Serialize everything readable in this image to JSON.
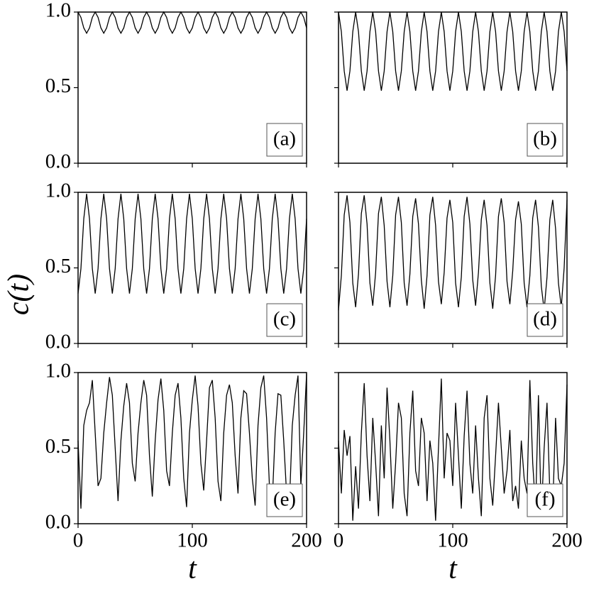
{
  "chart_data": [
    {
      "type": "line",
      "annotation": "(a)",
      "color": "#000000",
      "xlim": [
        0,
        200
      ],
      "ylim": [
        0,
        1
      ],
      "xticks": [
        0,
        100,
        200
      ],
      "yticks": [
        {
          "value": 0,
          "label": "0.0"
        },
        0.5,
        {
          "value": 1,
          "label": "1.0"
        }
      ],
      "x": [
        0,
        2.5,
        5,
        7.5,
        10,
        12.5,
        15,
        17.5,
        20,
        22.5,
        25,
        27.5,
        30,
        32.5,
        35,
        37.5,
        40,
        42.5,
        45,
        47.5,
        50,
        52.5,
        55,
        57.5,
        60,
        62.5,
        65,
        67.5,
        70,
        72.5,
        75,
        77.5,
        80,
        82.5,
        85,
        87.5,
        90,
        92.5,
        95,
        97.5,
        100,
        102.5,
        105,
        107.5,
        110,
        112.5,
        115,
        117.5,
        120,
        122.5,
        125,
        127.5,
        130,
        132.5,
        135,
        137.5,
        140,
        142.5,
        145,
        147.5,
        150,
        152.5,
        155,
        157.5,
        160,
        162.5,
        165,
        167.5,
        170,
        172.5,
        175,
        177.5,
        180,
        182.5,
        185,
        187.5,
        190,
        192.5,
        195,
        197.5,
        200
      ],
      "values": [
        1,
        0.965,
        0.895,
        0.86,
        0.895,
        0.965,
        1,
        0.965,
        0.895,
        0.86,
        0.895,
        0.965,
        1,
        0.965,
        0.895,
        0.86,
        0.895,
        0.965,
        1,
        0.965,
        0.895,
        0.86,
        0.895,
        0.965,
        1,
        0.965,
        0.895,
        0.86,
        0.895,
        0.965,
        1,
        0.965,
        0.895,
        0.86,
        0.895,
        0.965,
        1,
        0.965,
        0.895,
        0.86,
        0.895,
        0.965,
        1,
        0.965,
        0.895,
        0.86,
        0.895,
        0.965,
        1,
        0.965,
        0.895,
        0.86,
        0.895,
        0.965,
        1,
        0.965,
        0.895,
        0.86,
        0.895,
        0.965,
        1,
        0.965,
        0.895,
        0.86,
        0.895,
        0.965,
        1,
        0.965,
        0.895,
        0.86,
        0.895,
        0.965,
        1,
        0.965,
        0.895,
        0.86,
        0.895,
        0.965,
        1,
        0.965,
        0.895
      ]
    },
    {
      "type": "line",
      "annotation": "(b)",
      "color": "#000000",
      "xlim": [
        0,
        200
      ],
      "ylim": [
        0,
        1
      ],
      "xticks": [
        0,
        100,
        200
      ],
      "yticks": [
        0,
        0.5,
        1
      ],
      "x": [
        0,
        2.5,
        5,
        7.5,
        10,
        12.5,
        15,
        17.5,
        20,
        22.5,
        25,
        27.5,
        30,
        32.5,
        35,
        37.5,
        40,
        42.5,
        45,
        47.5,
        50,
        52.5,
        55,
        57.5,
        60,
        62.5,
        65,
        67.5,
        70,
        72.5,
        75,
        77.5,
        80,
        82.5,
        85,
        87.5,
        90,
        92.5,
        95,
        97.5,
        100,
        102.5,
        105,
        107.5,
        110,
        112.5,
        115,
        117.5,
        120,
        122.5,
        125,
        127.5,
        130,
        132.5,
        135,
        137.5,
        140,
        142.5,
        145,
        147.5,
        150,
        152.5,
        155,
        157.5,
        160,
        162.5,
        165,
        167.5,
        170,
        172.5,
        175,
        177.5,
        180,
        182.5,
        185,
        187.5,
        190,
        192.5,
        195,
        197.5,
        200
      ],
      "values": [
        1,
        0.87,
        0.61,
        0.48,
        0.61,
        0.87,
        1,
        0.87,
        0.61,
        0.48,
        0.61,
        0.87,
        1,
        0.87,
        0.61,
        0.48,
        0.61,
        0.87,
        1,
        0.87,
        0.61,
        0.48,
        0.61,
        0.87,
        1,
        0.87,
        0.61,
        0.48,
        0.61,
        0.87,
        1,
        0.87,
        0.61,
        0.48,
        0.61,
        0.87,
        1,
        0.87,
        0.61,
        0.48,
        0.61,
        0.87,
        1,
        0.87,
        0.61,
        0.48,
        0.61,
        0.87,
        1,
        0.87,
        0.61,
        0.48,
        0.61,
        0.87,
        1,
        0.87,
        0.61,
        0.48,
        0.61,
        0.87,
        1,
        0.87,
        0.61,
        0.48,
        0.61,
        0.87,
        1,
        0.87,
        0.61,
        0.48,
        0.61,
        0.87,
        1,
        0.87,
        0.61,
        0.48,
        0.61,
        0.87,
        1,
        0.87,
        0.61
      ]
    },
    {
      "type": "line",
      "annotation": "(c)",
      "ylabel": "c(t)",
      "color": "#000000",
      "xlim": [
        0,
        200
      ],
      "ylim": [
        0,
        1
      ],
      "xticks": [
        0,
        100,
        200
      ],
      "yticks": [
        {
          "value": 0,
          "label": "0.0"
        },
        0.5,
        {
          "value": 1,
          "label": "1.0"
        }
      ],
      "x": [
        0,
        2.5,
        5,
        7.5,
        10,
        12.5,
        15,
        17.5,
        20,
        22.5,
        25,
        27.5,
        30,
        32.5,
        35,
        37.5,
        40,
        42.5,
        45,
        47.5,
        50,
        52.5,
        55,
        57.5,
        60,
        62.5,
        65,
        67.5,
        70,
        72.5,
        75,
        77.5,
        80,
        82.5,
        85,
        87.5,
        90,
        92.5,
        95,
        97.5,
        100,
        102.5,
        105,
        107.5,
        110,
        112.5,
        115,
        117.5,
        120,
        122.5,
        125,
        127.5,
        130,
        132.5,
        135,
        137.5,
        140,
        142.5,
        145,
        147.5,
        150,
        152.5,
        155,
        157.5,
        160,
        162.5,
        165,
        167.5,
        170,
        172.5,
        175,
        177.5,
        180,
        182.5,
        185,
        187.5,
        190,
        192.5,
        195,
        197.5,
        200
      ],
      "values": [
        0.33,
        0.495,
        0.825,
        0.99,
        0.825,
        0.495,
        0.33,
        0.495,
        0.825,
        0.99,
        0.825,
        0.495,
        0.33,
        0.495,
        0.825,
        0.99,
        0.825,
        0.495,
        0.33,
        0.495,
        0.825,
        0.99,
        0.825,
        0.495,
        0.33,
        0.495,
        0.825,
        0.99,
        0.825,
        0.495,
        0.33,
        0.495,
        0.825,
        0.99,
        0.825,
        0.495,
        0.33,
        0.495,
        0.825,
        0.99,
        0.825,
        0.495,
        0.33,
        0.495,
        0.825,
        0.99,
        0.825,
        0.495,
        0.33,
        0.495,
        0.825,
        0.99,
        0.825,
        0.495,
        0.33,
        0.495,
        0.825,
        0.99,
        0.825,
        0.495,
        0.33,
        0.495,
        0.825,
        0.99,
        0.825,
        0.495,
        0.33,
        0.495,
        0.825,
        0.99,
        0.825,
        0.495,
        0.33,
        0.495,
        0.825,
        0.99,
        0.825,
        0.495,
        0.33,
        0.495,
        0.825
      ]
    },
    {
      "type": "line",
      "annotation": "(d)",
      "color": "#000000",
      "xlim": [
        0,
        200
      ],
      "ylim": [
        0,
        1
      ],
      "xticks": [
        0,
        100,
        200
      ],
      "yticks": [
        0,
        0.5,
        1
      ],
      "x": [
        0,
        2.5,
        5,
        7.5,
        10,
        12.5,
        15,
        17.5,
        20,
        22.5,
        25,
        27.5,
        30,
        32.5,
        35,
        37.5,
        40,
        42.5,
        45,
        47.5,
        50,
        52.5,
        55,
        57.5,
        60,
        62.5,
        65,
        67.5,
        70,
        72.5,
        75,
        77.5,
        80,
        82.5,
        85,
        87.5,
        90,
        92.5,
        95,
        97.5,
        100,
        102.5,
        105,
        107.5,
        110,
        112.5,
        115,
        117.5,
        120,
        122.5,
        125,
        127.5,
        130,
        132.5,
        135,
        137.5,
        140,
        142.5,
        145,
        147.5,
        150,
        152.5,
        155,
        157.5,
        160,
        162.5,
        165,
        167.5,
        170,
        172.5,
        175,
        177.5,
        180,
        182.5,
        185,
        187.5,
        190,
        192.5,
        195,
        197.5,
        200
      ],
      "values": [
        0.22,
        0.45,
        0.85,
        0.98,
        0.8,
        0.4,
        0.24,
        0.46,
        0.86,
        0.98,
        0.79,
        0.4,
        0.25,
        0.47,
        0.86,
        0.97,
        0.78,
        0.41,
        0.24,
        0.45,
        0.85,
        0.97,
        0.8,
        0.4,
        0.25,
        0.46,
        0.84,
        0.96,
        0.79,
        0.42,
        0.23,
        0.45,
        0.85,
        0.97,
        0.78,
        0.41,
        0.26,
        0.47,
        0.83,
        0.95,
        0.8,
        0.4,
        0.24,
        0.44,
        0.84,
        0.97,
        0.79,
        0.42,
        0.25,
        0.47,
        0.82,
        0.95,
        0.78,
        0.4,
        0.23,
        0.45,
        0.84,
        0.96,
        0.8,
        0.41,
        0.26,
        0.48,
        0.82,
        0.94,
        0.79,
        0.4,
        0.24,
        0.45,
        0.83,
        0.95,
        0.77,
        0.38,
        0.22,
        0.44,
        0.82,
        0.95,
        0.76,
        0.4,
        0.24,
        0.5,
        0.95
      ]
    },
    {
      "type": "line",
      "annotation": "(e)",
      "xlabel": "t",
      "color": "#000000",
      "xlim": [
        0,
        200
      ],
      "ylim": [
        0,
        1
      ],
      "xticks": [
        0,
        100,
        200
      ],
      "yticks": [
        {
          "value": 0,
          "label": "0.0"
        },
        0.5,
        {
          "value": 1,
          "label": "1.0"
        }
      ],
      "x": [
        0,
        2.5,
        5,
        7.5,
        10,
        12.5,
        15,
        17.5,
        20,
        22.5,
        25,
        27.5,
        30,
        32.5,
        35,
        37.5,
        40,
        42.5,
        45,
        47.5,
        50,
        52.5,
        55,
        57.5,
        60,
        62.5,
        65,
        67.5,
        70,
        72.5,
        75,
        77.5,
        80,
        82.5,
        85,
        87.5,
        90,
        92.5,
        95,
        97.5,
        100,
        102.5,
        105,
        107.5,
        110,
        112.5,
        115,
        117.5,
        120,
        122.5,
        125,
        127.5,
        130,
        132.5,
        135,
        137.5,
        140,
        142.5,
        145,
        147.5,
        150,
        152.5,
        155,
        157.5,
        160,
        162.5,
        165,
        167.5,
        170,
        172.5,
        175,
        177.5,
        180,
        182.5,
        185,
        187.5,
        190,
        192.5,
        195,
        197.5,
        200
      ],
      "values": [
        0.55,
        0.1,
        0.65,
        0.75,
        0.8,
        0.95,
        0.6,
        0.25,
        0.3,
        0.6,
        0.8,
        0.97,
        0.85,
        0.5,
        0.15,
        0.55,
        0.78,
        0.93,
        0.8,
        0.4,
        0.28,
        0.6,
        0.8,
        0.95,
        0.85,
        0.45,
        0.18,
        0.55,
        0.82,
        0.96,
        0.75,
        0.35,
        0.25,
        0.6,
        0.85,
        0.93,
        0.7,
        0.3,
        0.11,
        0.6,
        0.82,
        0.98,
        0.78,
        0.4,
        0.22,
        0.55,
        0.9,
        0.95,
        0.7,
        0.28,
        0.15,
        0.6,
        0.85,
        0.92,
        0.8,
        0.45,
        0.2,
        0.7,
        0.88,
        0.86,
        0.6,
        0.3,
        0.12,
        0.65,
        0.9,
        0.98,
        0.7,
        0.25,
        0.15,
        0.6,
        0.86,
        0.85,
        0.55,
        0.2,
        0.13,
        0.65,
        0.85,
        0.98,
        0.25,
        0.6,
        0.99
      ]
    },
    {
      "type": "line",
      "annotation": "(f)",
      "xlabel": "t",
      "color": "#000000",
      "xlim": [
        0,
        200
      ],
      "ylim": [
        0,
        1
      ],
      "xticks": [
        0,
        100,
        200
      ],
      "yticks": [
        0,
        0.5,
        1
      ],
      "x": [
        0,
        2.5,
        5,
        7.5,
        10,
        12.5,
        15,
        17.5,
        20,
        22.5,
        25,
        27.5,
        30,
        32.5,
        35,
        37.5,
        40,
        42.5,
        45,
        47.5,
        50,
        52.5,
        55,
        57.5,
        60,
        62.5,
        65,
        67.5,
        70,
        72.5,
        75,
        77.5,
        80,
        82.5,
        85,
        87.5,
        90,
        92.5,
        95,
        97.5,
        100,
        102.5,
        105,
        107.5,
        110,
        112.5,
        115,
        117.5,
        120,
        122.5,
        125,
        127.5,
        130,
        132.5,
        135,
        137.5,
        140,
        142.5,
        145,
        147.5,
        150,
        152.5,
        155,
        157.5,
        160,
        162.5,
        165,
        167.5,
        170,
        172.5,
        175,
        177.5,
        180,
        182.5,
        185,
        187.5,
        190,
        192.5,
        195,
        197.5,
        200
      ],
      "values": [
        0.55,
        0.2,
        0.62,
        0.45,
        0.58,
        0.02,
        0.38,
        0.1,
        0.6,
        0.93,
        0.45,
        0.15,
        0.7,
        0.4,
        0.05,
        0.65,
        0.3,
        0.9,
        0.55,
        0.1,
        0.4,
        0.8,
        0.7,
        0.2,
        0.05,
        0.6,
        0.88,
        0.35,
        0.25,
        0.7,
        0.6,
        0.15,
        0.55,
        0.4,
        0.02,
        0.5,
        0.96,
        0.3,
        0.6,
        0.55,
        0.25,
        0.8,
        0.45,
        0.1,
        0.58,
        0.88,
        0.4,
        0.2,
        0.65,
        0.3,
        0.05,
        0.7,
        0.85,
        0.3,
        0.12,
        0.45,
        0.8,
        0.5,
        0.2,
        0.35,
        0.62,
        0.15,
        0.25,
        0.1,
        0.55,
        0.3,
        0.2,
        0.95,
        0.4,
        0.1,
        0.85,
        0.05,
        0.5,
        0.8,
        0.2,
        0.1,
        0.7,
        0.3,
        0.25,
        0.4,
        0.92
      ]
    }
  ]
}
